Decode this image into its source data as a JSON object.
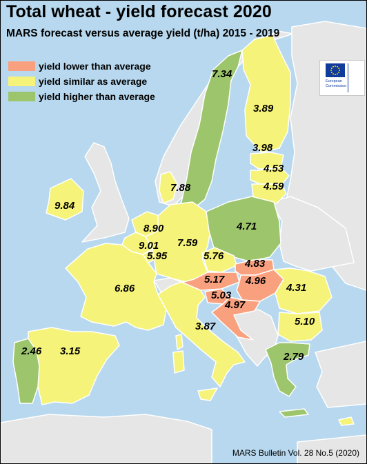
{
  "title": "Total wheat - yield forecast 2020",
  "subtitle": "MARS forecast versus average yield (t/ha) 2015 - 2019",
  "legend": [
    {
      "label": "yield lower than average",
      "color": "#f9a07f"
    },
    {
      "label": "yield similar as average",
      "color": "#f5f379"
    },
    {
      "label": "yield higher than average",
      "color": "#9dc56b"
    }
  ],
  "colors": {
    "sea": "#b7d8ee",
    "non_eu_land": "#e6e6e6",
    "border": "#ffffff"
  },
  "logo": {
    "icon": "eu-flag-icon",
    "line1": "European",
    "line2": "Commission"
  },
  "countries": [
    {
      "id": "se",
      "value": "7.34",
      "category": "higher"
    },
    {
      "id": "fi",
      "value": "3.89",
      "category": "similar"
    },
    {
      "id": "ee",
      "value": "3.98",
      "category": "similar"
    },
    {
      "id": "lv",
      "value": "4.53",
      "category": "similar"
    },
    {
      "id": "lt",
      "value": "4.59",
      "category": "similar"
    },
    {
      "id": "dk",
      "value": "7.88",
      "category": "similar"
    },
    {
      "id": "ie",
      "value": "9.84",
      "category": "similar"
    },
    {
      "id": "pl",
      "value": "4.71",
      "category": "higher"
    },
    {
      "id": "nl",
      "value": "8.90",
      "category": "similar"
    },
    {
      "id": "be",
      "value": "9.01",
      "category": "similar"
    },
    {
      "id": "de",
      "value": "7.59",
      "category": "similar"
    },
    {
      "id": "lu",
      "value": "5.95",
      "category": "similar"
    },
    {
      "id": "cz",
      "value": "5.76",
      "category": "similar"
    },
    {
      "id": "sk",
      "value": "4.83",
      "category": "lower"
    },
    {
      "id": "hu",
      "value": "4.96",
      "category": "lower"
    },
    {
      "id": "at",
      "value": "5.17",
      "category": "lower"
    },
    {
      "id": "si",
      "value": "5.03",
      "category": "lower"
    },
    {
      "id": "hr",
      "value": "4.97",
      "category": "lower"
    },
    {
      "id": "fr",
      "value": "6.86",
      "category": "similar"
    },
    {
      "id": "ro",
      "value": "4.31",
      "category": "similar"
    },
    {
      "id": "bg",
      "value": "5.10",
      "category": "similar"
    },
    {
      "id": "it",
      "value": "3.87",
      "category": "similar"
    },
    {
      "id": "pt",
      "value": "2.46",
      "category": "higher"
    },
    {
      "id": "es",
      "value": "3.15",
      "category": "similar"
    },
    {
      "id": "gr",
      "value": "2.79",
      "category": "higher"
    }
  ],
  "footer": "MARS Bulletin Vol. 28 No.5 (2020)"
}
